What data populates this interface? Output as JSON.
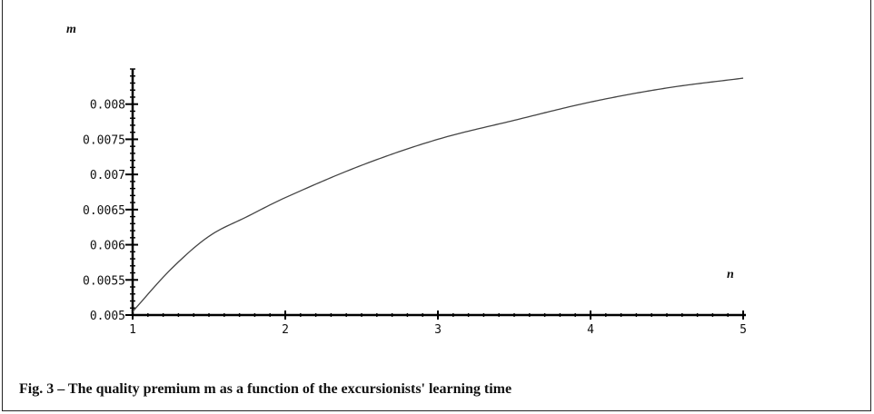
{
  "chart_data": {
    "type": "line",
    "title": "",
    "xlabel": "n",
    "ylabel": "m",
    "xlim": [
      1,
      5
    ],
    "ylim": [
      0.005,
      0.0085
    ],
    "x_ticks": [
      "1",
      "2",
      "3",
      "4",
      "5"
    ],
    "y_ticks": [
      "0.005",
      "0.0055",
      "0.006",
      "0.0065",
      "0.007",
      "0.0075",
      "0.008"
    ],
    "grid": false,
    "series": [
      {
        "color": "#444444",
        "x": [
          1,
          1.25,
          1.5,
          1.75,
          2,
          2.5,
          3,
          3.5,
          4,
          4.5,
          5
        ],
        "y": [
          0.00505,
          0.00565,
          0.00612,
          0.0064,
          0.00667,
          0.00713,
          0.0075,
          0.00777,
          0.00803,
          0.00823,
          0.00837
        ]
      }
    ]
  },
  "caption": "Fig. 3 – The quality premium m as a function of the excursionists' learning time"
}
